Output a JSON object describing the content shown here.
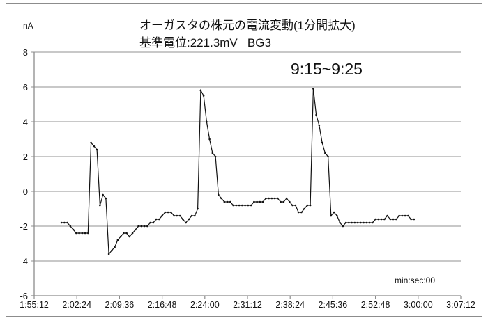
{
  "chart_data": {
    "type": "line",
    "title": "オーガスタの株元の電流変動(1分間拡大)",
    "subtitle": "基準電位:221.3mV   BG3",
    "annotation": "9:15~9:25",
    "ylabel": "nA",
    "xlabel": "min:sec:00",
    "ylim": [
      -6,
      8
    ],
    "yticks": [
      "8",
      "6",
      "4",
      "2",
      "0",
      "-2",
      "-4",
      "-6"
    ],
    "ytick_values": [
      8,
      6,
      4,
      2,
      0,
      -2,
      -4,
      -6
    ],
    "xlim": [
      "1:55:12",
      "3:07:12"
    ],
    "xticks": [
      "1:55:12",
      "2:02:24",
      "2:09:36",
      "2:16:48",
      "2:24:00",
      "2:31:12",
      "2:38:24",
      "2:45:36",
      "2:52:48",
      "3:00:00",
      "3:07:12"
    ],
    "grid": "horizontal",
    "line_color": "#111111",
    "grid_color": "#a6a6a6",
    "x": [
      "1:59:48",
      "2:00:18",
      "2:00:48",
      "2:01:18",
      "2:01:48",
      "2:02:18",
      "2:02:48",
      "2:03:18",
      "2:03:48",
      "2:04:18",
      "2:04:48",
      "2:05:18",
      "2:05:48",
      "2:06:18",
      "2:06:48",
      "2:07:18",
      "2:07:48",
      "2:08:18",
      "2:08:48",
      "2:09:18",
      "2:09:48",
      "2:10:18",
      "2:10:48",
      "2:11:18",
      "2:11:48",
      "2:12:18",
      "2:12:48",
      "2:13:18",
      "2:13:48",
      "2:14:18",
      "2:14:48",
      "2:15:18",
      "2:15:48",
      "2:16:18",
      "2:16:48",
      "2:17:18",
      "2:17:48",
      "2:18:18",
      "2:18:48",
      "2:19:18",
      "2:19:48",
      "2:20:18",
      "2:20:48",
      "2:21:18",
      "2:21:48",
      "2:22:18",
      "2:22:48",
      "2:23:18",
      "2:23:48",
      "2:24:18",
      "2:24:48",
      "2:25:18",
      "2:25:48",
      "2:26:18",
      "2:26:48",
      "2:27:18",
      "2:27:48",
      "2:28:18",
      "2:28:48",
      "2:29:18",
      "2:29:48",
      "2:30:18",
      "2:30:48",
      "2:31:18",
      "2:31:48",
      "2:32:18",
      "2:32:48",
      "2:33:18",
      "2:33:48",
      "2:34:18",
      "2:34:48",
      "2:35:18",
      "2:35:48",
      "2:36:18",
      "2:36:48",
      "2:37:18",
      "2:37:48",
      "2:38:18",
      "2:38:48",
      "2:39:18",
      "2:39:48",
      "2:40:18",
      "2:40:48",
      "2:41:18",
      "2:41:48",
      "2:42:18",
      "2:42:48",
      "2:43:18",
      "2:43:48",
      "2:44:18",
      "2:44:48",
      "2:45:18",
      "2:45:48",
      "2:46:18",
      "2:46:48",
      "2:47:18",
      "2:47:48",
      "2:48:18",
      "2:48:48",
      "2:49:18",
      "2:49:48",
      "2:50:18",
      "2:50:48",
      "2:51:18",
      "2:51:48",
      "2:52:18",
      "2:52:48",
      "2:53:18",
      "2:53:48",
      "2:54:18",
      "2:54:48",
      "2:55:18",
      "2:55:48",
      "2:56:18",
      "2:56:48",
      "2:57:18",
      "2:57:48",
      "2:58:18",
      "2:58:48",
      "2:59:18"
    ],
    "values": [
      -1.8,
      -1.8,
      -1.8,
      -2.0,
      -2.2,
      -2.4,
      -2.4,
      -2.4,
      -2.4,
      -2.4,
      2.8,
      2.6,
      2.4,
      -0.8,
      -0.2,
      -0.4,
      -3.6,
      -3.4,
      -3.2,
      -2.8,
      -2.6,
      -2.4,
      -2.4,
      -2.6,
      -2.4,
      -2.2,
      -2.0,
      -2.0,
      -2.0,
      -2.0,
      -1.8,
      -1.8,
      -1.6,
      -1.6,
      -1.4,
      -1.2,
      -1.2,
      -1.2,
      -1.4,
      -1.4,
      -1.4,
      -1.6,
      -1.8,
      -1.6,
      -1.4,
      -1.4,
      -1.0,
      5.8,
      5.5,
      4.0,
      3.0,
      2.2,
      2.0,
      -0.2,
      -0.4,
      -0.6,
      -0.6,
      -0.6,
      -0.8,
      -0.8,
      -0.8,
      -0.8,
      -0.8,
      -0.8,
      -0.8,
      -0.6,
      -0.6,
      -0.6,
      -0.6,
      -0.4,
      -0.4,
      -0.4,
      -0.4,
      -0.4,
      -0.6,
      -0.6,
      -0.4,
      -0.6,
      -0.8,
      -0.8,
      -1.2,
      -1.2,
      -1.0,
      -0.8,
      -0.8,
      5.9,
      4.4,
      3.8,
      2.8,
      2.2,
      2.0,
      -1.4,
      -1.2,
      -1.4,
      -1.8,
      -2.0,
      -1.8,
      -1.8,
      -1.8,
      -1.8,
      -1.8,
      -1.8,
      -1.8,
      -1.8,
      -1.8,
      -1.8,
      -1.6,
      -1.6,
      -1.6,
      -1.6,
      -1.4,
      -1.6,
      -1.6,
      -1.6,
      -1.4,
      -1.4,
      -1.4,
      -1.4,
      -1.6,
      -1.6
    ]
  }
}
